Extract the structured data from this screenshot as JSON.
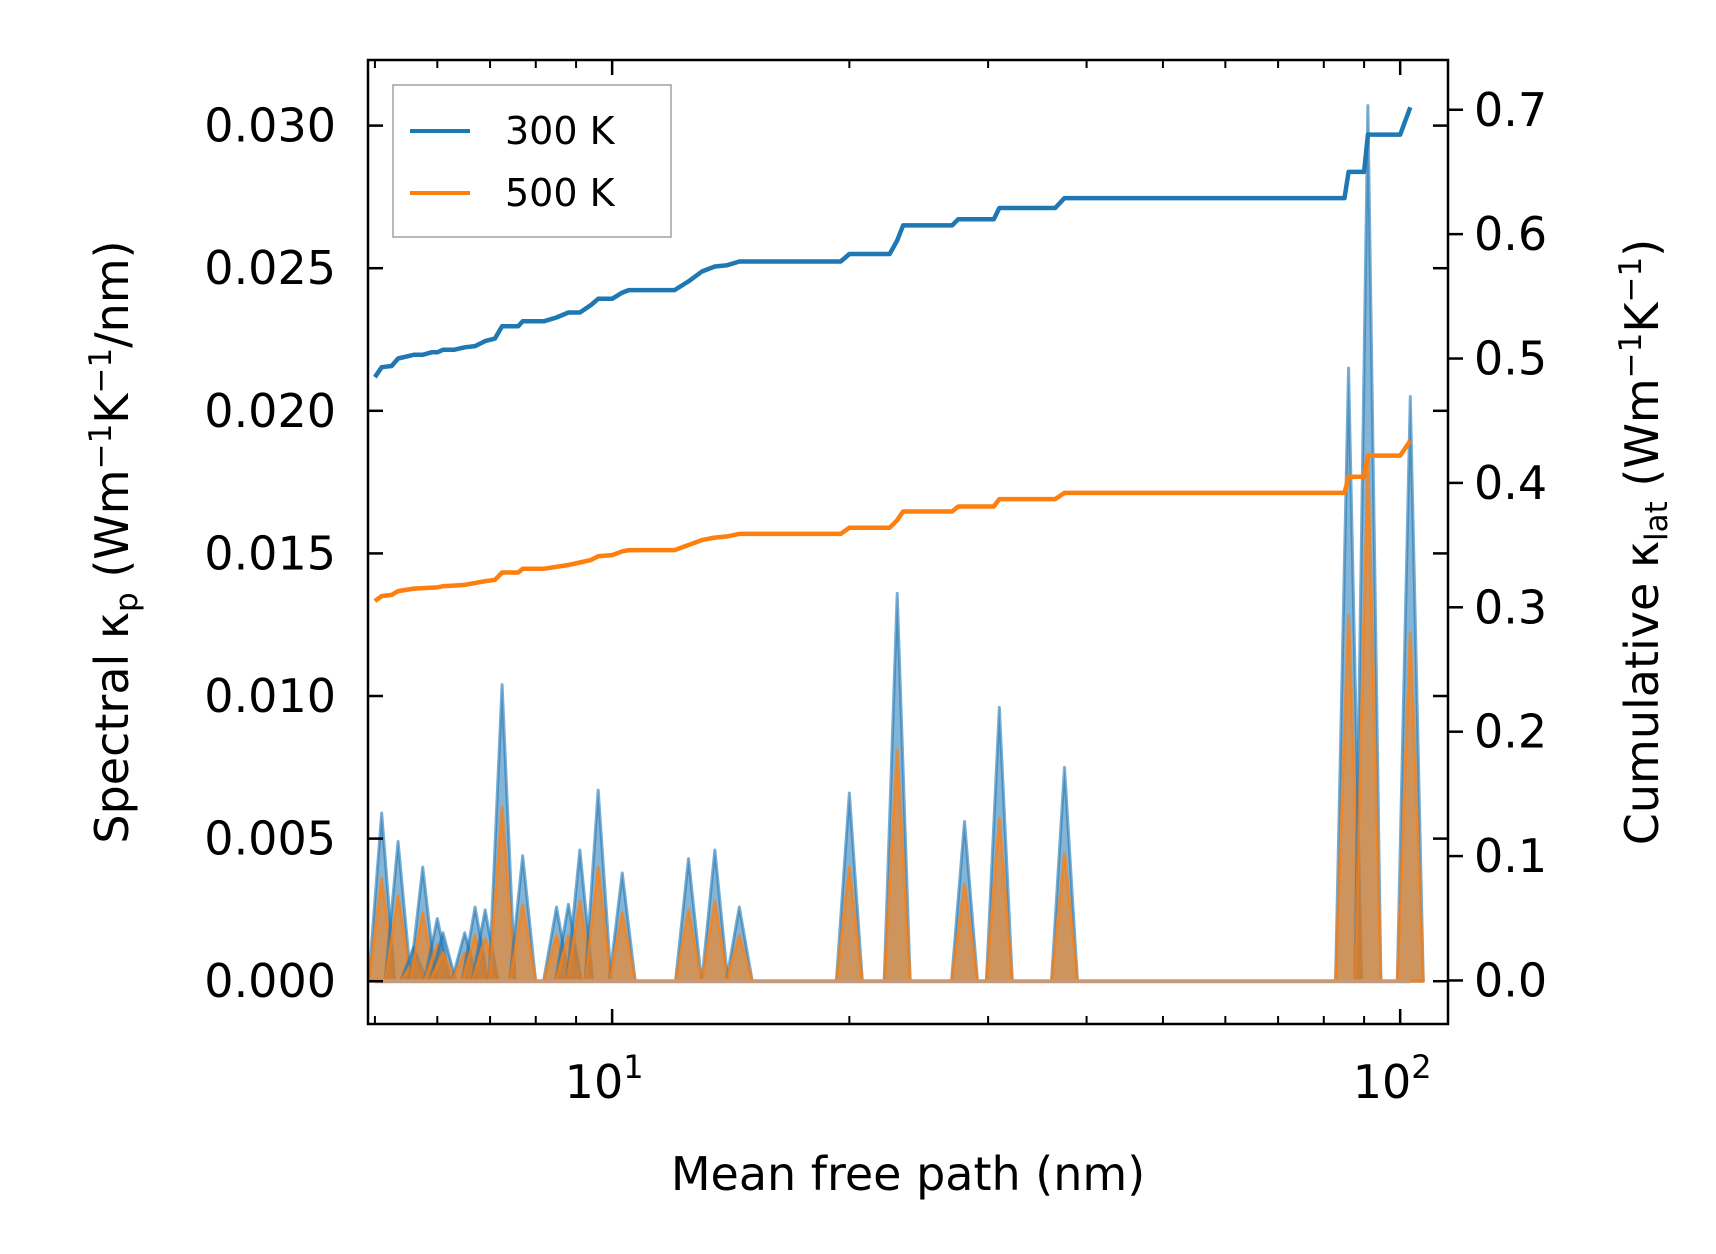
{
  "chart_data": {
    "type": "line",
    "xscale": "log",
    "xlabel": "Mean free path (nm)",
    "ylabel_left": {
      "pre": "Spectral κ",
      "sub": "p",
      "post": " (Wm",
      "sup1": "−1",
      "mid": "K",
      "sup2": "−1",
      "end": "/nm)"
    },
    "ylabel_right": {
      "pre": "Cumulative κ",
      "sub": "lat",
      "post": " (Wm",
      "sup1": "−1",
      "mid": "K",
      "sup2": "−1",
      "end": ")"
    },
    "xlim": [
      4.9,
      115
    ],
    "ylim_left": [
      -0.0015,
      0.0323
    ],
    "ylim_right": [
      -0.035,
      0.74
    ],
    "xticks_major": [
      {
        "value": 10,
        "base": "10",
        "exp": "1"
      },
      {
        "value": 100,
        "base": "10",
        "exp": "2"
      }
    ],
    "yticks_left": [
      {
        "value": 0,
        "label": "0.000"
      },
      {
        "value": 0.005,
        "label": "0.005"
      },
      {
        "value": 0.01,
        "label": "0.010"
      },
      {
        "value": 0.015,
        "label": "0.015"
      },
      {
        "value": 0.02,
        "label": "0.020"
      },
      {
        "value": 0.025,
        "label": "0.025"
      },
      {
        "value": 0.03,
        "label": "0.030"
      }
    ],
    "yticks_right": [
      {
        "value": 0,
        "label": "0.0"
      },
      {
        "value": 0.1,
        "label": "0.1"
      },
      {
        "value": 0.2,
        "label": "0.2"
      },
      {
        "value": 0.3,
        "label": "0.3"
      },
      {
        "value": 0.4,
        "label": "0.4"
      },
      {
        "value": 0.5,
        "label": "0.5"
      },
      {
        "value": 0.6,
        "label": "0.6"
      },
      {
        "value": 0.7,
        "label": "0.7"
      }
    ],
    "legend": {
      "position": "top-left",
      "entries": [
        {
          "label": "300 K",
          "color": "#1f77b4"
        },
        {
          "label": "500 K",
          "color": "#ff7f0e"
        }
      ]
    },
    "series": [
      {
        "name": "300 K",
        "color": "#1f77b4",
        "cumulative": [
          [
            5.0,
            0.485
          ],
          [
            5.1,
            0.493
          ],
          [
            5.25,
            0.494
          ],
          [
            5.35,
            0.5
          ],
          [
            5.6,
            0.503
          ],
          [
            5.75,
            0.503
          ],
          [
            5.9,
            0.505
          ],
          [
            6.0,
            0.505
          ],
          [
            6.1,
            0.507
          ],
          [
            6.3,
            0.507
          ],
          [
            6.5,
            0.509
          ],
          [
            6.7,
            0.51
          ],
          [
            6.9,
            0.514
          ],
          [
            7.1,
            0.516
          ],
          [
            7.25,
            0.526
          ],
          [
            7.6,
            0.526
          ],
          [
            7.7,
            0.53
          ],
          [
            8.2,
            0.53
          ],
          [
            8.5,
            0.533
          ],
          [
            8.8,
            0.537
          ],
          [
            9.1,
            0.537
          ],
          [
            9.4,
            0.543
          ],
          [
            9.6,
            0.548
          ],
          [
            10.0,
            0.548
          ],
          [
            10.3,
            0.553
          ],
          [
            10.5,
            0.555
          ],
          [
            12.0,
            0.555
          ],
          [
            12.5,
            0.562
          ],
          [
            13.0,
            0.57
          ],
          [
            13.5,
            0.574
          ],
          [
            14.0,
            0.575
          ],
          [
            14.5,
            0.578
          ],
          [
            19.5,
            0.578
          ],
          [
            20.0,
            0.584
          ],
          [
            22.5,
            0.584
          ],
          [
            23.0,
            0.595
          ],
          [
            23.4,
            0.607
          ],
          [
            27.0,
            0.607
          ],
          [
            27.5,
            0.612
          ],
          [
            30.5,
            0.612
          ],
          [
            31.0,
            0.621
          ],
          [
            36.5,
            0.621
          ],
          [
            37.5,
            0.629
          ],
          [
            85.0,
            0.629
          ],
          [
            86.0,
            0.65
          ],
          [
            90.0,
            0.65
          ],
          [
            91.0,
            0.68
          ],
          [
            100.0,
            0.68
          ],
          [
            103.0,
            0.702
          ]
        ]
      },
      {
        "name": "500 K",
        "color": "#ff7f0e",
        "cumulative": [
          [
            5.0,
            0.305
          ],
          [
            5.1,
            0.309
          ],
          [
            5.25,
            0.31
          ],
          [
            5.35,
            0.313
          ],
          [
            5.6,
            0.315
          ],
          [
            6.0,
            0.316
          ],
          [
            6.1,
            0.317
          ],
          [
            6.5,
            0.318
          ],
          [
            6.9,
            0.321
          ],
          [
            7.1,
            0.322
          ],
          [
            7.25,
            0.328
          ],
          [
            7.6,
            0.328
          ],
          [
            7.7,
            0.331
          ],
          [
            8.2,
            0.331
          ],
          [
            8.8,
            0.334
          ],
          [
            9.4,
            0.338
          ],
          [
            9.6,
            0.341
          ],
          [
            10.0,
            0.342
          ],
          [
            10.3,
            0.345
          ],
          [
            10.5,
            0.346
          ],
          [
            12.0,
            0.346
          ],
          [
            13.0,
            0.354
          ],
          [
            13.5,
            0.356
          ],
          [
            14.0,
            0.357
          ],
          [
            14.5,
            0.359
          ],
          [
            19.5,
            0.359
          ],
          [
            20.0,
            0.364
          ],
          [
            22.5,
            0.364
          ],
          [
            23.0,
            0.37
          ],
          [
            23.4,
            0.377
          ],
          [
            27.0,
            0.377
          ],
          [
            27.5,
            0.381
          ],
          [
            30.5,
            0.381
          ],
          [
            31.0,
            0.387
          ],
          [
            36.5,
            0.387
          ],
          [
            37.5,
            0.392
          ],
          [
            85.0,
            0.392
          ],
          [
            86.0,
            0.405
          ],
          [
            90.0,
            0.405
          ],
          [
            91.0,
            0.422
          ],
          [
            100.0,
            0.422
          ],
          [
            103.0,
            0.434
          ]
        ]
      }
    ],
    "spectral_peaks": [
      {
        "x": 5.1,
        "k300": 0.0059,
        "k500": 0.0036
      },
      {
        "x": 5.35,
        "k300": 0.0049,
        "k500": 0.003
      },
      {
        "x": 5.6,
        "k300": 0.0012,
        "k500": 0.0007
      },
      {
        "x": 5.75,
        "k300": 0.004,
        "k500": 0.0024
      },
      {
        "x": 6.0,
        "k300": 0.0022,
        "k500": 0.0013
      },
      {
        "x": 6.1,
        "k300": 0.0017,
        "k500": 0.001
      },
      {
        "x": 6.5,
        "k300": 0.0017,
        "k500": 0.001
      },
      {
        "x": 6.7,
        "k300": 0.0026,
        "k500": 0.0016
      },
      {
        "x": 6.9,
        "k300": 0.0025,
        "k500": 0.0015
      },
      {
        "x": 7.25,
        "k300": 0.0104,
        "k500": 0.0061
      },
      {
        "x": 7.7,
        "k300": 0.0044,
        "k500": 0.0027
      },
      {
        "x": 8.5,
        "k300": 0.0026,
        "k500": 0.0016
      },
      {
        "x": 8.8,
        "k300": 0.0027,
        "k500": 0.0016
      },
      {
        "x": 9.1,
        "k300": 0.0046,
        "k500": 0.0028
      },
      {
        "x": 9.6,
        "k300": 0.0067,
        "k500": 0.004
      },
      {
        "x": 10.3,
        "k300": 0.0038,
        "k500": 0.0024
      },
      {
        "x": 12.5,
        "k300": 0.0043,
        "k500": 0.0025
      },
      {
        "x": 13.5,
        "k300": 0.0046,
        "k500": 0.0028
      },
      {
        "x": 14.5,
        "k300": 0.0026,
        "k500": 0.0016
      },
      {
        "x": 20.0,
        "k300": 0.0066,
        "k500": 0.004
      },
      {
        "x": 23.0,
        "k300": 0.0136,
        "k500": 0.0081
      },
      {
        "x": 28.0,
        "k300": 0.0056,
        "k500": 0.0034
      },
      {
        "x": 31.0,
        "k300": 0.0096,
        "k500": 0.0057
      },
      {
        "x": 37.5,
        "k300": 0.0075,
        "k500": 0.0045
      },
      {
        "x": 86.0,
        "k300": 0.0215,
        "k500": 0.0128
      },
      {
        "x": 91.0,
        "k300": 0.0307,
        "k500": 0.0182
      },
      {
        "x": 103.0,
        "k300": 0.0205,
        "k500": 0.0122
      }
    ]
  }
}
